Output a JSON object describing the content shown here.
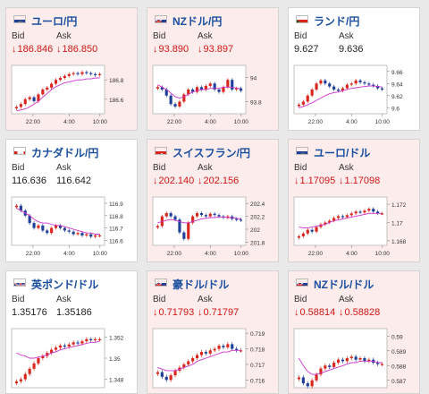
{
  "labels": {
    "bid": "Bid",
    "ask": "Ask"
  },
  "colors": {
    "up_candle": "#d9261c",
    "down_candle": "#1f3f99",
    "ma": "#cc33cc",
    "ma2": "#2aa7c9",
    "down_text": "#d01616",
    "title": "#1a4fa0"
  },
  "cards": [
    {
      "name": "ユーロ/円",
      "flag": "eu-flag-icon",
      "trend": "down",
      "bid": "186.846",
      "ask": "186.850",
      "chart_data": {
        "type": "candlestick",
        "x_ticks": [
          "22:00",
          "4:00",
          "10:00"
        ],
        "y_ticks": [
          "186.8",
          "186.6"
        ],
        "ylim": [
          186.45,
          186.95
        ],
        "series": [
          {
            "name": "price",
            "values": [
              186.52,
              186.55,
              186.6,
              186.62,
              186.58,
              186.65,
              186.7,
              186.72,
              186.76,
              186.8,
              186.82,
              186.84,
              186.86,
              186.87,
              186.86,
              186.88,
              186.87,
              186.86,
              186.85,
              186.86
            ]
          },
          {
            "name": "ma",
            "values": [
              186.48,
              186.49,
              186.5,
              186.52,
              186.55,
              186.58,
              186.62,
              186.66,
              186.7,
              186.73,
              186.75,
              186.77,
              186.78,
              186.79,
              186.8,
              186.8,
              186.81,
              186.81,
              186.82,
              186.82
            ]
          }
        ]
      }
    },
    {
      "name": "NZドル/円",
      "flag": "nz-flag-icon",
      "trend": "down",
      "bid": "93.890",
      "ask": "93.897",
      "chart_data": {
        "type": "candlestick",
        "x_ticks": [
          "22:00",
          "4:00",
          "10:00"
        ],
        "y_ticks": [
          "94",
          "93.8"
        ],
        "ylim": [
          93.7,
          94.1
        ],
        "series": [
          {
            "name": "price",
            "values": [
              93.92,
              93.9,
              93.85,
              93.78,
              93.76,
              93.8,
              93.86,
              93.9,
              93.88,
              93.92,
              93.9,
              93.93,
              93.95,
              93.9,
              93.88,
              93.92,
              93.98,
              93.9,
              93.91,
              93.89
            ]
          },
          {
            "name": "ma",
            "values": [
              93.94,
              93.92,
              93.9,
              93.87,
              93.84,
              93.83,
              93.84,
              93.86,
              93.88,
              93.89,
              93.9,
              93.9,
              93.91,
              93.91,
              93.91,
              93.92,
              93.92,
              93.92,
              93.91,
              93.91
            ]
          }
        ]
      }
    },
    {
      "name": "ランド/円",
      "flag": "za-flag-icon",
      "trend": "up",
      "bid": "9.627",
      "ask": "9.636",
      "chart_data": {
        "type": "candlestick",
        "x_ticks": [
          "22:00",
          "4:00",
          "10:00"
        ],
        "y_ticks": [
          "9.66",
          "9.64",
          "9.62",
          "9.6"
        ],
        "ylim": [
          9.59,
          9.67
        ],
        "series": [
          {
            "name": "price",
            "values": [
              9.605,
              9.61,
              9.62,
              9.63,
              9.64,
              9.645,
              9.64,
              9.635,
              9.63,
              9.628,
              9.632,
              9.638,
              9.64,
              9.645,
              9.642,
              9.64,
              9.638,
              9.636,
              9.632,
              9.63
            ]
          },
          {
            "name": "ma",
            "values": [
              9.6,
              9.602,
              9.605,
              9.608,
              9.612,
              9.616,
              9.62,
              9.623,
              9.625,
              9.626,
              9.628,
              9.63,
              9.632,
              9.633,
              9.634,
              9.635,
              9.636,
              9.636,
              9.635,
              9.634
            ]
          }
        ]
      }
    },
    {
      "name": "カナダドル/円",
      "flag": "ca-flag-icon",
      "trend": "up",
      "bid": "116.636",
      "ask": "116.642",
      "chart_data": {
        "type": "candlestick",
        "x_ticks": [
          "22:00",
          "4:00",
          "10:00"
        ],
        "y_ticks": [
          "116.9",
          "116.8",
          "116.7",
          "116.6"
        ],
        "ylim": [
          116.56,
          116.95
        ],
        "series": [
          {
            "name": "price",
            "values": [
              116.88,
              116.84,
              116.8,
              116.74,
              116.7,
              116.72,
              116.68,
              116.66,
              116.7,
              116.72,
              116.7,
              116.68,
              116.67,
              116.65,
              116.66,
              116.64,
              116.65,
              116.63,
              116.64,
              116.64
            ]
          },
          {
            "name": "ma",
            "values": [
              116.86,
              116.84,
              116.82,
              116.8,
              116.77,
              116.75,
              116.74,
              116.74,
              116.73,
              116.72,
              116.72,
              116.71,
              116.7,
              116.69,
              116.68,
              116.67,
              116.66,
              116.66,
              116.65,
              116.65
            ]
          }
        ]
      }
    },
    {
      "name": "スイスフラン/円",
      "flag": "ch-flag-icon",
      "trend": "down",
      "bid": "202.140",
      "ask": "202.156",
      "chart_data": {
        "type": "candlestick",
        "x_ticks": [
          "22:00",
          "4:00",
          "10:00"
        ],
        "y_ticks": [
          "202.4",
          "202.2",
          "202",
          "201.8"
        ],
        "ylim": [
          201.75,
          202.5
        ],
        "series": [
          {
            "name": "price",
            "values": [
              202.05,
              202.2,
              202.25,
              202.2,
              202.15,
              201.95,
              201.85,
              202.1,
              202.2,
              202.25,
              202.22,
              202.2,
              202.24,
              202.22,
              202.2,
              202.18,
              202.2,
              202.16,
              202.15,
              202.14
            ]
          },
          {
            "name": "ma",
            "values": [
              202.1,
              202.12,
              202.14,
              202.15,
              202.14,
              202.12,
              202.1,
              202.1,
              202.12,
              202.14,
              202.16,
              202.17,
              202.18,
              202.18,
              202.19,
              202.19,
              202.18,
              202.18,
              202.17,
              202.16
            ]
          }
        ]
      }
    },
    {
      "name": "ユーロ/ドル",
      "flag": "eu-flag-icon",
      "trend": "down",
      "bid": "1.17095",
      "ask": "1.17098",
      "chart_data": {
        "type": "candlestick",
        "x_ticks": [
          "22:00",
          "4:00",
          "10:00"
        ],
        "y_ticks": [
          "1.172",
          "1.17",
          "1.168"
        ],
        "ylim": [
          1.1675,
          1.1728
        ],
        "series": [
          {
            "name": "price",
            "values": [
              1.1685,
              1.1688,
              1.1692,
              1.169,
              1.1695,
              1.1698,
              1.17,
              1.1702,
              1.1705,
              1.1707,
              1.1706,
              1.1708,
              1.171,
              1.1712,
              1.1711,
              1.1713,
              1.1715,
              1.1712,
              1.171,
              1.171
            ]
          },
          {
            "name": "ma",
            "values": [
              1.1695,
              1.1694,
              1.1694,
              1.1695,
              1.1696,
              1.1697,
              1.1698,
              1.17,
              1.1702,
              1.1703,
              1.1704,
              1.1705,
              1.1706,
              1.1707,
              1.1708,
              1.1709,
              1.171,
              1.171,
              1.171,
              1.171
            ]
          }
        ]
      }
    },
    {
      "name": "英ポンド/ドル",
      "flag": "gb-flag-icon",
      "trend": "up",
      "bid": "1.35176",
      "ask": "1.35186",
      "chart_data": {
        "type": "candlestick",
        "x_ticks": [],
        "y_ticks": [
          "1.352",
          "1.35",
          "1.348"
        ],
        "ylim": [
          1.3472,
          1.3528
        ],
        "series": [
          {
            "name": "price",
            "values": [
              1.3478,
              1.348,
              1.3485,
              1.349,
              1.3495,
              1.35,
              1.3502,
              1.3505,
              1.3508,
              1.351,
              1.3512,
              1.3511,
              1.3513,
              1.3515,
              1.3514,
              1.3516,
              1.3518,
              1.3517,
              1.3518,
              1.3518
            ]
          },
          {
            "name": "ma",
            "values": [
              1.3505,
              1.3503,
              1.3502,
              1.35,
              1.35,
              1.3501,
              1.3502,
              1.3503,
              1.3505,
              1.3506,
              1.3508,
              1.3509,
              1.351,
              1.3511,
              1.3512,
              1.3513,
              1.3514,
              1.3515,
              1.3515,
              1.3516
            ]
          }
        ]
      }
    },
    {
      "name": "豪ドル/ドル",
      "flag": "au-flag-icon",
      "trend": "down",
      "bid": "0.71793",
      "ask": "0.71797",
      "chart_data": {
        "type": "candlestick",
        "x_ticks": [],
        "y_ticks": [
          "0.719",
          "0.718",
          "0.717",
          "0.716"
        ],
        "ylim": [
          0.7155,
          0.7193
        ],
        "series": [
          {
            "name": "price",
            "values": [
              0.7165,
              0.7162,
              0.716,
              0.7163,
              0.7166,
              0.7168,
              0.717,
              0.7172,
              0.7174,
              0.7176,
              0.7178,
              0.7177,
              0.7179,
              0.718,
              0.7182,
              0.7181,
              0.7183,
              0.718,
              0.7179,
              0.7179
            ]
          },
          {
            "name": "ma",
            "values": [
              0.7168,
              0.7167,
              0.7166,
              0.7166,
              0.7166,
              0.7167,
              0.7168,
              0.7169,
              0.717,
              0.7172,
              0.7173,
              0.7174,
              0.7175,
              0.7176,
              0.7177,
              0.7178,
              0.7178,
              0.7179,
              0.7179,
              0.7179
            ]
          }
        ]
      }
    },
    {
      "name": "NZドル/ドル",
      "flag": "nz-flag-icon",
      "trend": "down",
      "bid": "0.58814",
      "ask": "0.58828",
      "chart_data": {
        "type": "candlestick",
        "x_ticks": [],
        "y_ticks": [
          "0.59",
          "0.589",
          "0.588",
          "0.587"
        ],
        "ylim": [
          0.5865,
          0.5905
        ],
        "series": [
          {
            "name": "price",
            "values": [
              0.5872,
              0.5868,
              0.5866,
              0.587,
              0.5874,
              0.5878,
              0.588,
              0.5879,
              0.5882,
              0.5884,
              0.5883,
              0.5885,
              0.5886,
              0.5884,
              0.5885,
              0.5883,
              0.5884,
              0.5882,
              0.5881,
              0.5881
            ]
          },
          {
            "name": "ma",
            "values": [
              0.5885,
              0.588,
              0.5876,
              0.5874,
              0.5874,
              0.5875,
              0.5876,
              0.5877,
              0.5878,
              0.5879,
              0.588,
              0.5881,
              0.5882,
              0.5882,
              0.5883,
              0.5883,
              0.5883,
              0.5883,
              0.5882,
              0.5882
            ]
          }
        ]
      }
    }
  ]
}
